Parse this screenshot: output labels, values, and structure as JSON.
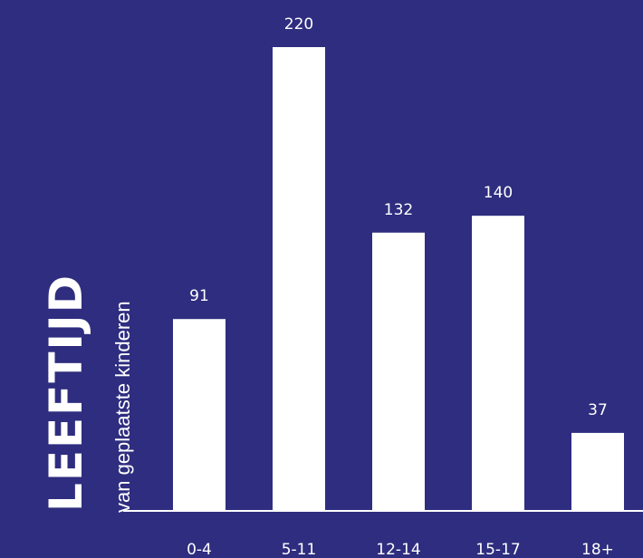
{
  "colors": {
    "background": "#2e2d7f",
    "bar": "#ffffff",
    "text": "#ffffff"
  },
  "chart_data": {
    "type": "bar",
    "title": "LEEFTIJD",
    "subtitle": "van geplaatste kinderen",
    "categories": [
      "0-4",
      "5-11",
      "12-14",
      "15-17",
      "18+"
    ],
    "values": [
      91,
      220,
      132,
      140,
      37
    ],
    "xlabel": "",
    "ylabel": "",
    "ylim": [
      0,
      235
    ],
    "grid": false,
    "legend": "none",
    "data_labels": true
  }
}
